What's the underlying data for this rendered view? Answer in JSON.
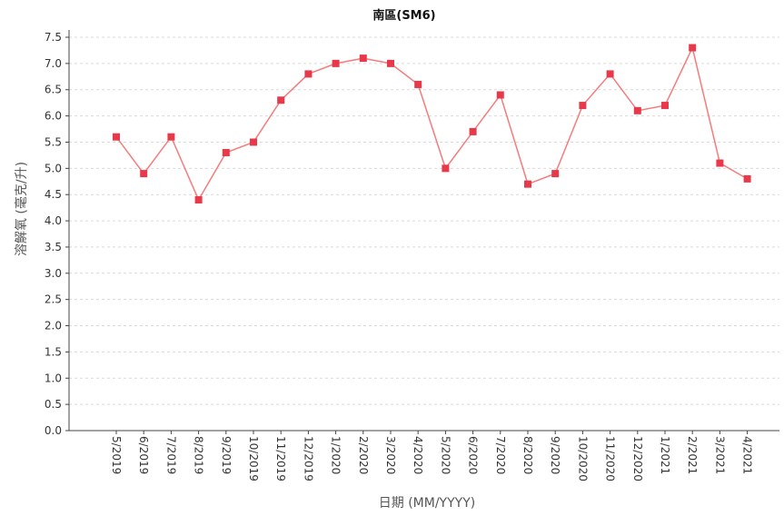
{
  "chart_data": {
    "type": "line",
    "title": "南區(SM6)",
    "xlabel": "日期 (MM/YYYY)",
    "ylabel": "溶解氧 (毫克/升)",
    "ylim": [
      0,
      7.5
    ],
    "y_ticks": [
      "0.0",
      "0.5",
      "1.0",
      "1.5",
      "2.0",
      "2.5",
      "3.0",
      "3.5",
      "4.0",
      "4.5",
      "5.0",
      "5.5",
      "6.0",
      "6.5",
      "7.0",
      "7.5"
    ],
    "categories": [
      "5/2019",
      "6/2019",
      "7/2019",
      "8/2019",
      "9/2019",
      "10/2019",
      "11/2019",
      "12/2019",
      "1/2020",
      "2/2020",
      "3/2020",
      "4/2020",
      "5/2020",
      "6/2020",
      "7/2020",
      "8/2020",
      "9/2020",
      "10/2020",
      "11/2020",
      "12/2020",
      "1/2021",
      "2/2021",
      "3/2021",
      "4/2021"
    ],
    "series": [
      {
        "values": [
          5.6,
          4.9,
          5.6,
          4.4,
          5.3,
          5.5,
          6.3,
          6.8,
          7.0,
          7.1,
          7.0,
          6.6,
          5.0,
          5.7,
          6.4,
          4.7,
          4.9,
          6.2,
          6.8,
          6.1,
          6.2,
          7.3,
          5.1,
          4.8
        ],
        "line_color": "#f47c7c",
        "marker_color": "#e8394a"
      }
    ],
    "grid": true,
    "legend": "none"
  }
}
